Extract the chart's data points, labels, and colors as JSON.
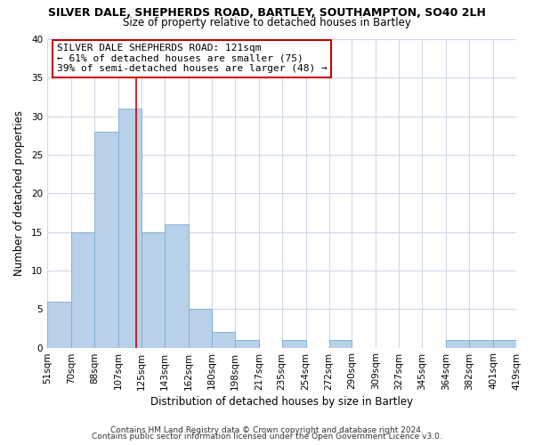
{
  "title1": "SILVER DALE, SHEPHERDS ROAD, BARTLEY, SOUTHAMPTON, SO40 2LH",
  "title2": "Size of property relative to detached houses in Bartley",
  "xlabel": "Distribution of detached houses by size in Bartley",
  "ylabel": "Number of detached properties",
  "bin_edges": [
    51,
    70,
    88,
    107,
    125,
    143,
    162,
    180,
    198,
    217,
    235,
    254,
    272,
    290,
    309,
    327,
    345,
    364,
    382,
    401,
    419
  ],
  "bar_heights": [
    6,
    15,
    28,
    31,
    15,
    16,
    5,
    2,
    1,
    0,
    1,
    0,
    1,
    0,
    0,
    0,
    0,
    1,
    1,
    1
  ],
  "bar_color": "#b8d0e8",
  "bar_edge_color": "#7aafd4",
  "vline_x": 121,
  "vline_color": "#cc0000",
  "ylim": [
    0,
    40
  ],
  "annotation_text": "SILVER DALE SHEPHERDS ROAD: 121sqm\n← 61% of detached houses are smaller (75)\n39% of semi-detached houses are larger (48) →",
  "annotation_box_edge": "#cc0000",
  "tick_labels": [
    "51sqm",
    "70sqm",
    "88sqm",
    "107sqm",
    "125sqm",
    "143sqm",
    "162sqm",
    "180sqm",
    "198sqm",
    "217sqm",
    "235sqm",
    "254sqm",
    "272sqm",
    "290sqm",
    "309sqm",
    "327sqm",
    "345sqm",
    "364sqm",
    "382sqm",
    "401sqm",
    "419sqm"
  ],
  "footnote1": "Contains HM Land Registry data © Crown copyright and database right 2024.",
  "footnote2": "Contains public sector information licensed under the Open Government Licence v3.0.",
  "background_color": "#ffffff",
  "grid_color": "#d0d8e8"
}
